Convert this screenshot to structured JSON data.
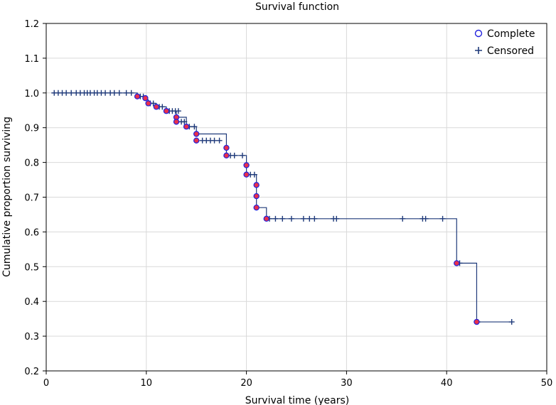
{
  "chart_data": {
    "type": "line",
    "title": "Survival function",
    "xlabel": "Survival time (years)",
    "ylabel": "Cumulative proportion surviving",
    "xlim": [
      0,
      50
    ],
    "ylim": [
      0.2,
      1.2
    ],
    "xticks": [
      0,
      10,
      20,
      30,
      40,
      50
    ],
    "yticks": [
      0.2,
      0.3,
      0.4,
      0.5,
      0.6,
      0.7,
      0.8,
      0.9,
      1.0,
      1.1,
      1.2
    ],
    "xtick_labels": [
      "0",
      "10",
      "20",
      "30",
      "40",
      "50"
    ],
    "ytick_labels": [
      "0.2",
      "0.3",
      "0.4",
      "0.5",
      "0.6",
      "0.7",
      "0.8",
      "0.9",
      "1.0",
      "1.1",
      "1.2"
    ],
    "grid": true,
    "legend_position": "top-right",
    "legend": [
      {
        "label": "Complete",
        "marker": "circle"
      },
      {
        "label": "Censored",
        "marker": "plus"
      }
    ],
    "colors": {
      "line": "#1f3a7a",
      "complete_marker": "#2222dd",
      "complete_fill": "#e8304a",
      "censored_marker": "#1f3a7a",
      "grid": "#d9d9d9"
    },
    "series": [
      {
        "name": "Survival function",
        "step_x": [
          0.6,
          9.1,
          10.0,
          10.2,
          11.0,
          12.0,
          13.0,
          14.0,
          15.0,
          18.0,
          18.0,
          20.0,
          20.0,
          21.0,
          21.0,
          21.0,
          22.0,
          41.0,
          43.0,
          46.5
        ],
        "step_y": [
          1.0,
          0.99,
          0.98,
          0.97,
          0.96,
          0.948,
          0.93,
          0.903,
          0.882,
          0.863,
          0.82,
          0.818,
          0.765,
          0.735,
          0.703,
          0.67,
          0.638,
          0.51,
          0.341,
          0.341
        ]
      }
    ],
    "complete": [
      {
        "x": 9.1,
        "y": 0.99
      },
      {
        "x": 9.9,
        "y": 0.985
      },
      {
        "x": 10.2,
        "y": 0.97
      },
      {
        "x": 11.0,
        "y": 0.96
      },
      {
        "x": 12.0,
        "y": 0.948
      },
      {
        "x": 13.0,
        "y": 0.93
      },
      {
        "x": 13.0,
        "y": 0.917
      },
      {
        "x": 14.0,
        "y": 0.903
      },
      {
        "x": 15.0,
        "y": 0.882
      },
      {
        "x": 15.0,
        "y": 0.863
      },
      {
        "x": 18.0,
        "y": 0.842
      },
      {
        "x": 18.0,
        "y": 0.82
      },
      {
        "x": 20.0,
        "y": 0.792
      },
      {
        "x": 20.0,
        "y": 0.765
      },
      {
        "x": 21.0,
        "y": 0.735
      },
      {
        "x": 21.0,
        "y": 0.703
      },
      {
        "x": 21.0,
        "y": 0.67
      },
      {
        "x": 22.0,
        "y": 0.638
      },
      {
        "x": 41.0,
        "y": 0.51
      },
      {
        "x": 43.0,
        "y": 0.341
      }
    ],
    "censored": [
      {
        "x": 0.8,
        "y": 1.0
      },
      {
        "x": 1.2,
        "y": 1.0
      },
      {
        "x": 1.6,
        "y": 1.0
      },
      {
        "x": 2.0,
        "y": 1.0
      },
      {
        "x": 2.5,
        "y": 1.0
      },
      {
        "x": 3.0,
        "y": 1.0
      },
      {
        "x": 3.4,
        "y": 1.0
      },
      {
        "x": 3.8,
        "y": 1.0
      },
      {
        "x": 4.1,
        "y": 1.0
      },
      {
        "x": 4.4,
        "y": 1.0
      },
      {
        "x": 4.8,
        "y": 1.0
      },
      {
        "x": 5.1,
        "y": 1.0
      },
      {
        "x": 5.5,
        "y": 1.0
      },
      {
        "x": 5.9,
        "y": 1.0
      },
      {
        "x": 6.4,
        "y": 1.0
      },
      {
        "x": 6.8,
        "y": 1.0
      },
      {
        "x": 7.3,
        "y": 1.0
      },
      {
        "x": 8.0,
        "y": 1.0
      },
      {
        "x": 8.5,
        "y": 1.0
      },
      {
        "x": 9.4,
        "y": 0.99
      },
      {
        "x": 9.7,
        "y": 0.99
      },
      {
        "x": 10.4,
        "y": 0.97
      },
      {
        "x": 10.7,
        "y": 0.97
      },
      {
        "x": 11.3,
        "y": 0.96
      },
      {
        "x": 11.6,
        "y": 0.96
      },
      {
        "x": 12.3,
        "y": 0.948
      },
      {
        "x": 12.6,
        "y": 0.948
      },
      {
        "x": 12.9,
        "y": 0.948
      },
      {
        "x": 13.2,
        "y": 0.948
      },
      {
        "x": 13.5,
        "y": 0.917
      },
      {
        "x": 13.8,
        "y": 0.917
      },
      {
        "x": 14.3,
        "y": 0.903
      },
      {
        "x": 14.8,
        "y": 0.903
      },
      {
        "x": 15.6,
        "y": 0.863
      },
      {
        "x": 16.0,
        "y": 0.863
      },
      {
        "x": 16.4,
        "y": 0.863
      },
      {
        "x": 16.8,
        "y": 0.863
      },
      {
        "x": 17.3,
        "y": 0.863
      },
      {
        "x": 18.4,
        "y": 0.82
      },
      {
        "x": 18.8,
        "y": 0.82
      },
      {
        "x": 19.6,
        "y": 0.82
      },
      {
        "x": 20.4,
        "y": 0.765
      },
      {
        "x": 20.8,
        "y": 0.765
      },
      {
        "x": 22.3,
        "y": 0.638
      },
      {
        "x": 22.9,
        "y": 0.638
      },
      {
        "x": 23.6,
        "y": 0.638
      },
      {
        "x": 24.5,
        "y": 0.638
      },
      {
        "x": 25.7,
        "y": 0.638
      },
      {
        "x": 26.3,
        "y": 0.638
      },
      {
        "x": 26.8,
        "y": 0.638
      },
      {
        "x": 28.7,
        "y": 0.638
      },
      {
        "x": 29.0,
        "y": 0.638
      },
      {
        "x": 35.6,
        "y": 0.638
      },
      {
        "x": 37.6,
        "y": 0.638
      },
      {
        "x": 37.9,
        "y": 0.638
      },
      {
        "x": 39.6,
        "y": 0.638
      },
      {
        "x": 41.3,
        "y": 0.51
      },
      {
        "x": 43.1,
        "y": 0.341
      },
      {
        "x": 46.5,
        "y": 0.341
      }
    ]
  }
}
